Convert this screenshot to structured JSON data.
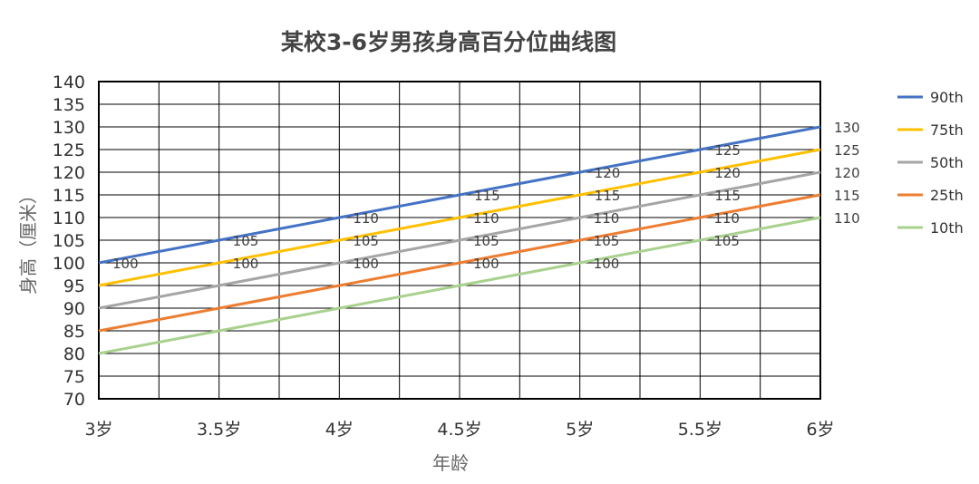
{
  "chart_data": {
    "type": "line",
    "title": "某校3-6岁男孩身高百分位曲线图",
    "xlabel": "年龄",
    "ylabel": "身高（厘米）",
    "x": [
      3,
      3.5,
      4,
      4.5,
      5,
      5.5,
      6
    ],
    "x_tick_labels": [
      "3岁",
      "3.5岁",
      "4岁",
      "4.5岁",
      "5岁",
      "5.5岁",
      "6岁"
    ],
    "xlim": [
      3,
      6
    ],
    "ylim": [
      70,
      140
    ],
    "y_tick_step": 5,
    "grid": true,
    "legend_position": "right",
    "series": [
      {
        "name": "90th",
        "color": "#4472C4",
        "values": [
          100,
          105,
          110,
          115,
          120,
          125,
          130
        ]
      },
      {
        "name": "75th",
        "color": "#FFC000",
        "values": [
          95,
          100,
          105,
          110,
          115,
          120,
          125
        ]
      },
      {
        "name": "50th",
        "color": "#A5A5A5",
        "values": [
          90,
          95,
          100,
          105,
          110,
          115,
          120
        ]
      },
      {
        "name": "25th",
        "color": "#ED7D31",
        "values": [
          85,
          90,
          95,
          100,
          105,
          110,
          115
        ]
      },
      {
        "name": "10th",
        "color": "#A9D18E",
        "values": [
          80,
          85,
          90,
          95,
          100,
          105,
          110
        ]
      }
    ]
  }
}
